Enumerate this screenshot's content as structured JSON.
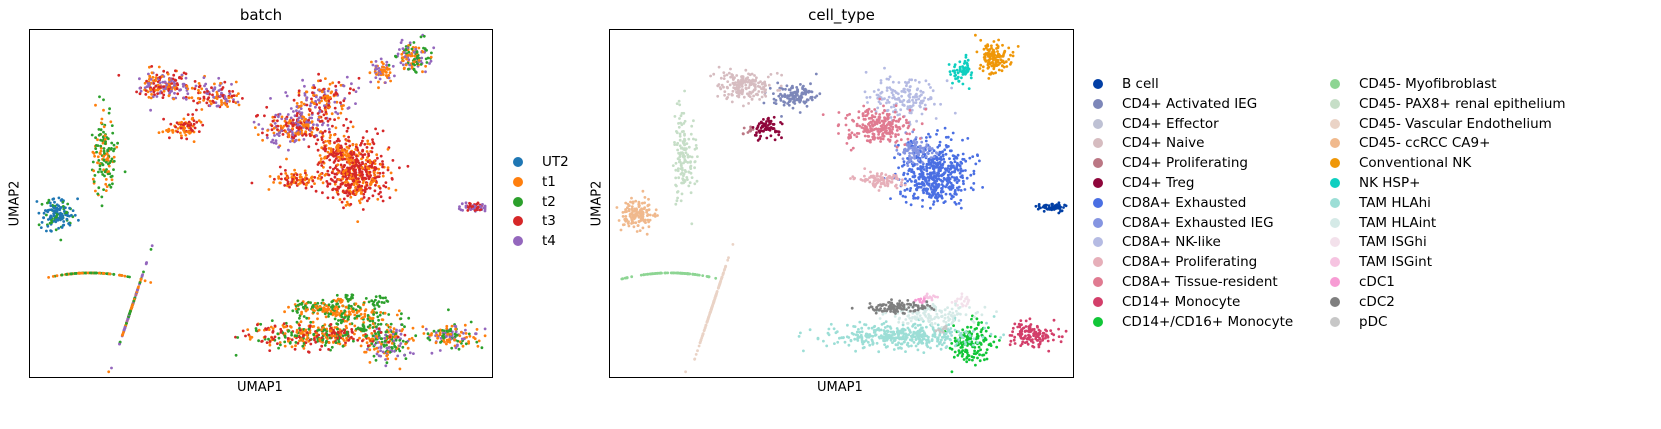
{
  "chart_data": [
    {
      "type": "scatter",
      "title": "batch",
      "xlabel": "UMAP1",
      "ylabel": "UMAP2",
      "grid": false,
      "legend_placement": "right",
      "series": [
        {
          "name": "UT2",
          "color": "#1f77b4"
        },
        {
          "name": "t1",
          "color": "#ff7f0e"
        },
        {
          "name": "t2",
          "color": "#2ca02c"
        },
        {
          "name": "t3",
          "color": "#d62728"
        },
        {
          "name": "t4",
          "color": "#9467bd"
        }
      ]
    },
    {
      "type": "scatter",
      "title": "cell_type",
      "xlabel": "UMAP1",
      "ylabel": "UMAP2",
      "grid": false,
      "legend_placement": "right",
      "series": [
        {
          "name": "B cell",
          "color": "#023fa5"
        },
        {
          "name": "CD4+ Activated IEG",
          "color": "#7d87b9"
        },
        {
          "name": "CD4+ Effector",
          "color": "#bec1d4"
        },
        {
          "name": "CD4+ Naive",
          "color": "#d6bcc0"
        },
        {
          "name": "CD4+ Proliferating",
          "color": "#bb7784"
        },
        {
          "name": "CD4+ Treg",
          "color": "#8e063b"
        },
        {
          "name": "CD8A+ Exhausted",
          "color": "#4a6fe3"
        },
        {
          "name": "CD8A+ Exhausted IEG",
          "color": "#8595e1"
        },
        {
          "name": "CD8A+ NK-like",
          "color": "#b5bbe3"
        },
        {
          "name": "CD8A+ Proliferating",
          "color": "#e6afb9"
        },
        {
          "name": "CD8A+ Tissue-resident",
          "color": "#e07b91"
        },
        {
          "name": "CD14+ Monocyte",
          "color": "#d33f6a"
        },
        {
          "name": "CD14+/CD16+ Monocyte",
          "color": "#11c638"
        },
        {
          "name": "CD45- Myofibroblast",
          "color": "#8dd593"
        },
        {
          "name": "CD45- PAX8+ renal epithelium",
          "color": "#c6dec7"
        },
        {
          "name": "CD45- Vascular Endothelium",
          "color": "#ead3c6"
        },
        {
          "name": "CD45- ccRCC CA9+",
          "color": "#f0b98d"
        },
        {
          "name": "Conventional NK",
          "color": "#ef9708"
        },
        {
          "name": "NK HSP+",
          "color": "#0fcfc0"
        },
        {
          "name": "TAM HLAhi",
          "color": "#9cded6"
        },
        {
          "name": "TAM HLAint",
          "color": "#d5eae7"
        },
        {
          "name": "TAM ISGhi",
          "color": "#f3e1eb"
        },
        {
          "name": "TAM ISGint",
          "color": "#f6c4e1"
        },
        {
          "name": "cDC1",
          "color": "#f79cd4"
        },
        {
          "name": "cDC2",
          "color": "#7f7f7f"
        },
        {
          "name": "pDC",
          "color": "#c7c7c7"
        }
      ]
    }
  ]
}
